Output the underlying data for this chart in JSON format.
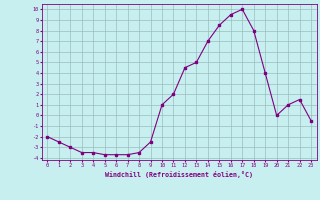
{
  "x": [
    0,
    1,
    2,
    3,
    4,
    5,
    6,
    7,
    8,
    9,
    10,
    11,
    12,
    13,
    14,
    15,
    16,
    17,
    18,
    19,
    20,
    21,
    22,
    23
  ],
  "y": [
    -2,
    -2.5,
    -3,
    -3.5,
    -3.5,
    -3.7,
    -3.7,
    -3.7,
    -3.5,
    -2.5,
    1,
    2,
    4.5,
    5,
    7,
    8.5,
    9.5,
    10,
    8,
    4,
    0,
    1,
    1.5,
    -0.5
  ],
  "xlim": [
    -0.5,
    23.5
  ],
  "ylim": [
    -4.2,
    10.5
  ],
  "xlabel": "Windchill (Refroidissement éolien,°C)",
  "bg_color": "#c8eff0",
  "line_color": "#800080",
  "grid_color": "#9bbcbd",
  "yticks": [
    -4,
    -3,
    -2,
    -1,
    0,
    1,
    2,
    3,
    4,
    5,
    6,
    7,
    8,
    9,
    10
  ],
  "xticks": [
    0,
    1,
    2,
    3,
    4,
    5,
    6,
    7,
    8,
    9,
    10,
    11,
    12,
    13,
    14,
    15,
    16,
    17,
    18,
    19,
    20,
    21,
    22,
    23
  ]
}
